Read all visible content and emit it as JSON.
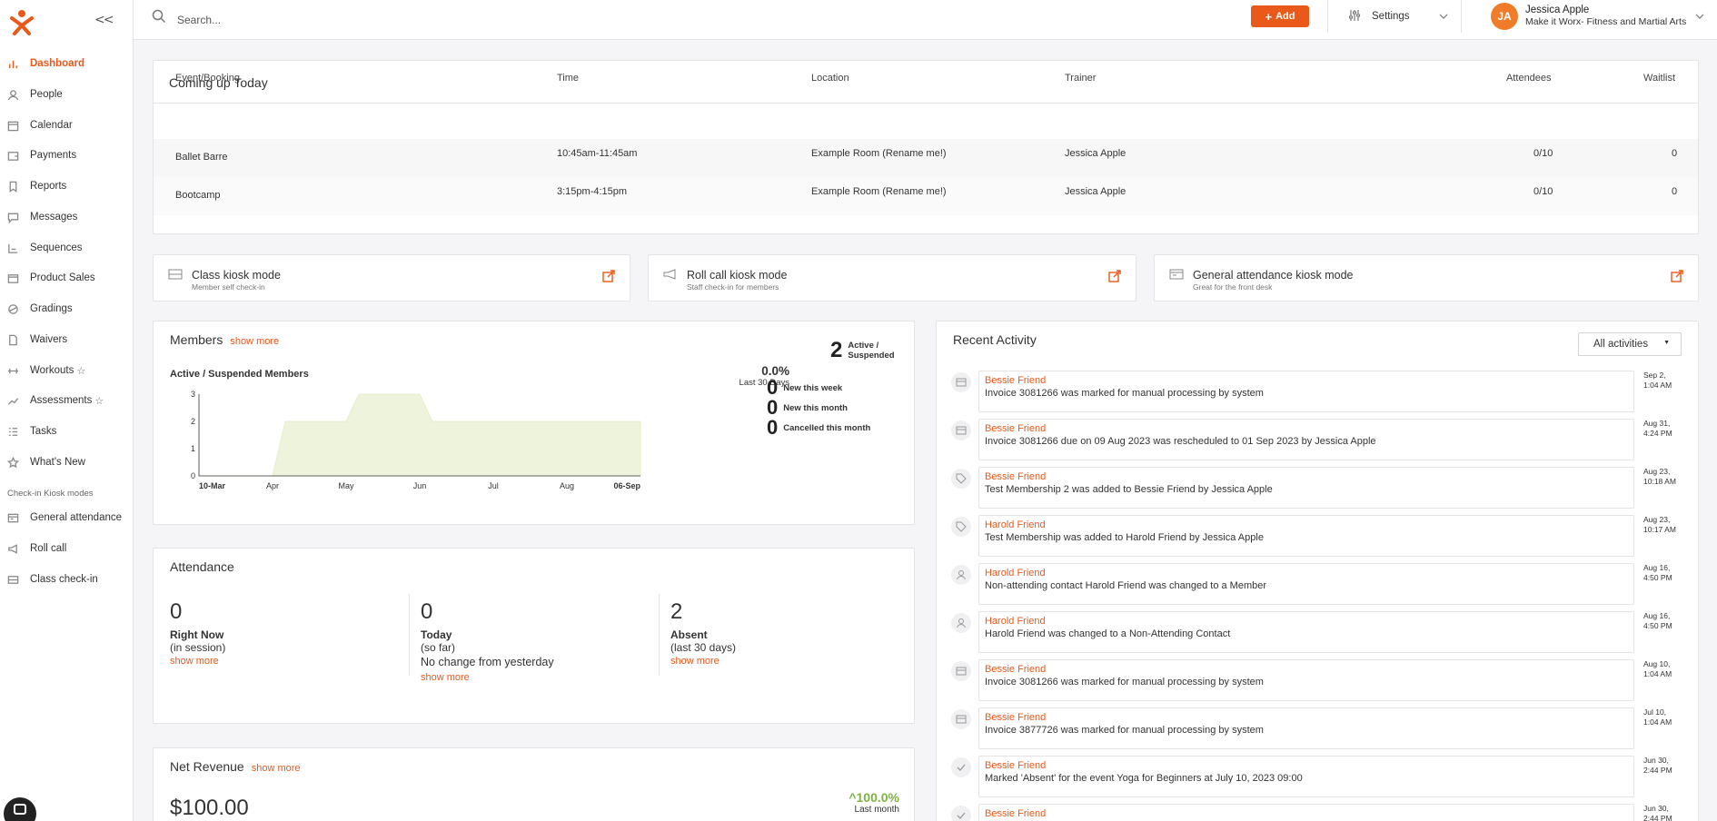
{
  "sidebar": {
    "collapse_label": "<<",
    "items": [
      {
        "label": "Dashboard",
        "icon": "bar-chart-icon"
      },
      {
        "label": "People",
        "icon": "person-icon"
      },
      {
        "label": "Calendar",
        "icon": "calendar-icon"
      },
      {
        "label": "Payments",
        "icon": "wallet-icon"
      },
      {
        "label": "Reports",
        "icon": "bookmark-icon"
      },
      {
        "label": "Messages",
        "icon": "chat-icon"
      },
      {
        "label": "Sequences",
        "icon": "sequence-icon"
      },
      {
        "label": "Product Sales",
        "icon": "box-icon"
      },
      {
        "label": "Gradings",
        "icon": "belt-icon"
      },
      {
        "label": "Waivers",
        "icon": "document-icon"
      },
      {
        "label": "Workouts",
        "icon": "dumbbell-icon",
        "star": "☆"
      },
      {
        "label": "Assessments",
        "icon": "trend-icon",
        "star": "☆"
      },
      {
        "label": "Tasks",
        "icon": "checklist-icon"
      },
      {
        "label": "What's New",
        "icon": "star-icon"
      }
    ],
    "kiosk_heading": "Check-in Kiosk modes",
    "kiosk_items": [
      {
        "label": "General attendance",
        "icon": "attendance-icon"
      },
      {
        "label": "Roll call",
        "icon": "megaphone-icon"
      },
      {
        "label": "Class check-in",
        "icon": "class-checkin-icon"
      }
    ]
  },
  "topbar": {
    "search_placeholder": "Search...",
    "add_label": "Add",
    "settings_label": "Settings",
    "user_initials": "JA",
    "user_name": "Jessica Apple",
    "user_org": "Make it Worx- Fitness and Martial Arts"
  },
  "coming_up": {
    "title": "Coming up Today",
    "headers": [
      "Event/Booking",
      "Time",
      "Location",
      "Trainer",
      "Attendees",
      "Waitlist"
    ],
    "rows": [
      {
        "event": "Ballet Barre",
        "time": "10:45am-11:45am",
        "location": "Example Room (Rename me!)",
        "trainer": "Jessica Apple",
        "attendees": "0/10",
        "waitlist": "0"
      },
      {
        "event": "Bootcamp",
        "time": "3:15pm-4:15pm",
        "location": "Example Room (Rename me!)",
        "trainer": "Jessica Apple",
        "attendees": "0/10",
        "waitlist": "0"
      }
    ]
  },
  "kiosks": [
    {
      "title": "Class kiosk mode",
      "subtitle": "Member self check-in"
    },
    {
      "title": "Roll call kiosk mode",
      "subtitle": "Staff check-in for members"
    },
    {
      "title": "General attendance kiosk mode",
      "subtitle": "Great for the front desk"
    }
  ],
  "members": {
    "title": "Members",
    "show_more": "show more",
    "chart_title": "Active / Suspended Members",
    "percent": "0.0%",
    "period": "Last 30 Days",
    "active_count": "2",
    "active_label_1": "Active /",
    "active_label_2": "Suspended",
    "stats": [
      {
        "value": "0",
        "label": "New this week"
      },
      {
        "value": "0",
        "label": "New this month"
      },
      {
        "value": "0",
        "label": "Cancelled this month"
      }
    ]
  },
  "chart_data": {
    "type": "area",
    "title": "Active / Suspended Members",
    "x": [
      "10-Mar",
      "Apr",
      "May",
      "Jun",
      "Jul",
      "Aug",
      "06-Sep"
    ],
    "ylim": [
      0,
      3
    ],
    "y_ticks": [
      "0",
      "1",
      "2",
      "3"
    ],
    "series": [
      {
        "points": [
          {
            "x": "10-Mar",
            "y": 0
          },
          {
            "x": "Apr",
            "y": 0
          },
          {
            "x": "Apr",
            "y": 2
          },
          {
            "x": "May",
            "y": 2
          },
          {
            "x": "May",
            "y": 3
          },
          {
            "x": "Jun",
            "y": 3
          },
          {
            "x": "Jun",
            "y": 2
          },
          {
            "x": "06-Sep",
            "y": 2
          }
        ]
      }
    ],
    "color": "#eef3dc",
    "grid": false
  },
  "attendance": {
    "title": "Attendance",
    "cols": [
      {
        "value": "0",
        "label": "Right Now",
        "sub": "(in session)",
        "note": "",
        "link": "show more"
      },
      {
        "value": "0",
        "label": "Today",
        "sub": "(so far)",
        "note": "No change from yesterday",
        "link": "show more"
      },
      {
        "value": "2",
        "label": "Absent",
        "sub": "(last 30 days)",
        "note": "",
        "link": "show more"
      }
    ]
  },
  "revenue": {
    "title": "Net Revenue",
    "show_more": "show more",
    "amount": "$100.00",
    "percent": "100.0%",
    "period": "Last month"
  },
  "recent": {
    "title": "Recent Activity",
    "filter": "All activities",
    "items": [
      {
        "name": "Bessie Friend",
        "text": "Invoice 3081266 was marked for manual processing by system",
        "date1": "Sep 2,",
        "date2": "1:04 AM",
        "icon": "card-icon"
      },
      {
        "name": "Bessie Friend",
        "text": "Invoice 3081266 due on 09 Aug 2023 was rescheduled to 01 Sep 2023 by Jessica Apple",
        "date1": "Aug 31,",
        "date2": "4:24 PM",
        "icon": "card-icon"
      },
      {
        "name": "Bessie Friend",
        "text": "Test Membership 2 was added to Bessie Friend by Jessica Apple",
        "date1": "Aug 23,",
        "date2": "10:18 AM",
        "icon": "tag-icon"
      },
      {
        "name": "Harold Friend",
        "text": "Test Membership was added to Harold Friend by Jessica Apple",
        "date1": "Aug 23,",
        "date2": "10:17 AM",
        "icon": "tag-icon"
      },
      {
        "name": "Harold Friend",
        "text": "Non-attending contact Harold Friend was changed to a Member",
        "date1": "Aug 16,",
        "date2": "4:50 PM",
        "icon": "person-icon"
      },
      {
        "name": "Harold Friend",
        "text": "Harold Friend was changed to a Non-Attending Contact",
        "date1": "Aug 16,",
        "date2": "4:50 PM",
        "icon": "person-icon"
      },
      {
        "name": "Bessie Friend",
        "text": "Invoice 3081266 was marked for manual processing by system",
        "date1": "Aug 10,",
        "date2": "1:04 AM",
        "icon": "card-icon"
      },
      {
        "name": "Bessie Friend",
        "text": "Invoice 3877726 was marked for manual processing by system",
        "date1": "Jul 10,",
        "date2": "1:04 AM",
        "icon": "card-icon"
      },
      {
        "name": "Bessie Friend",
        "text": "Marked 'Absent' for the event Yoga for Beginners at July 10, 2023 09:00",
        "date1": "Jun 30,",
        "date2": "2:44 PM",
        "icon": "check-icon"
      },
      {
        "name": "Bessie Friend",
        "text": "",
        "date1": "Jun 30,",
        "date2": "2:44 PM",
        "icon": "check-icon"
      }
    ]
  }
}
